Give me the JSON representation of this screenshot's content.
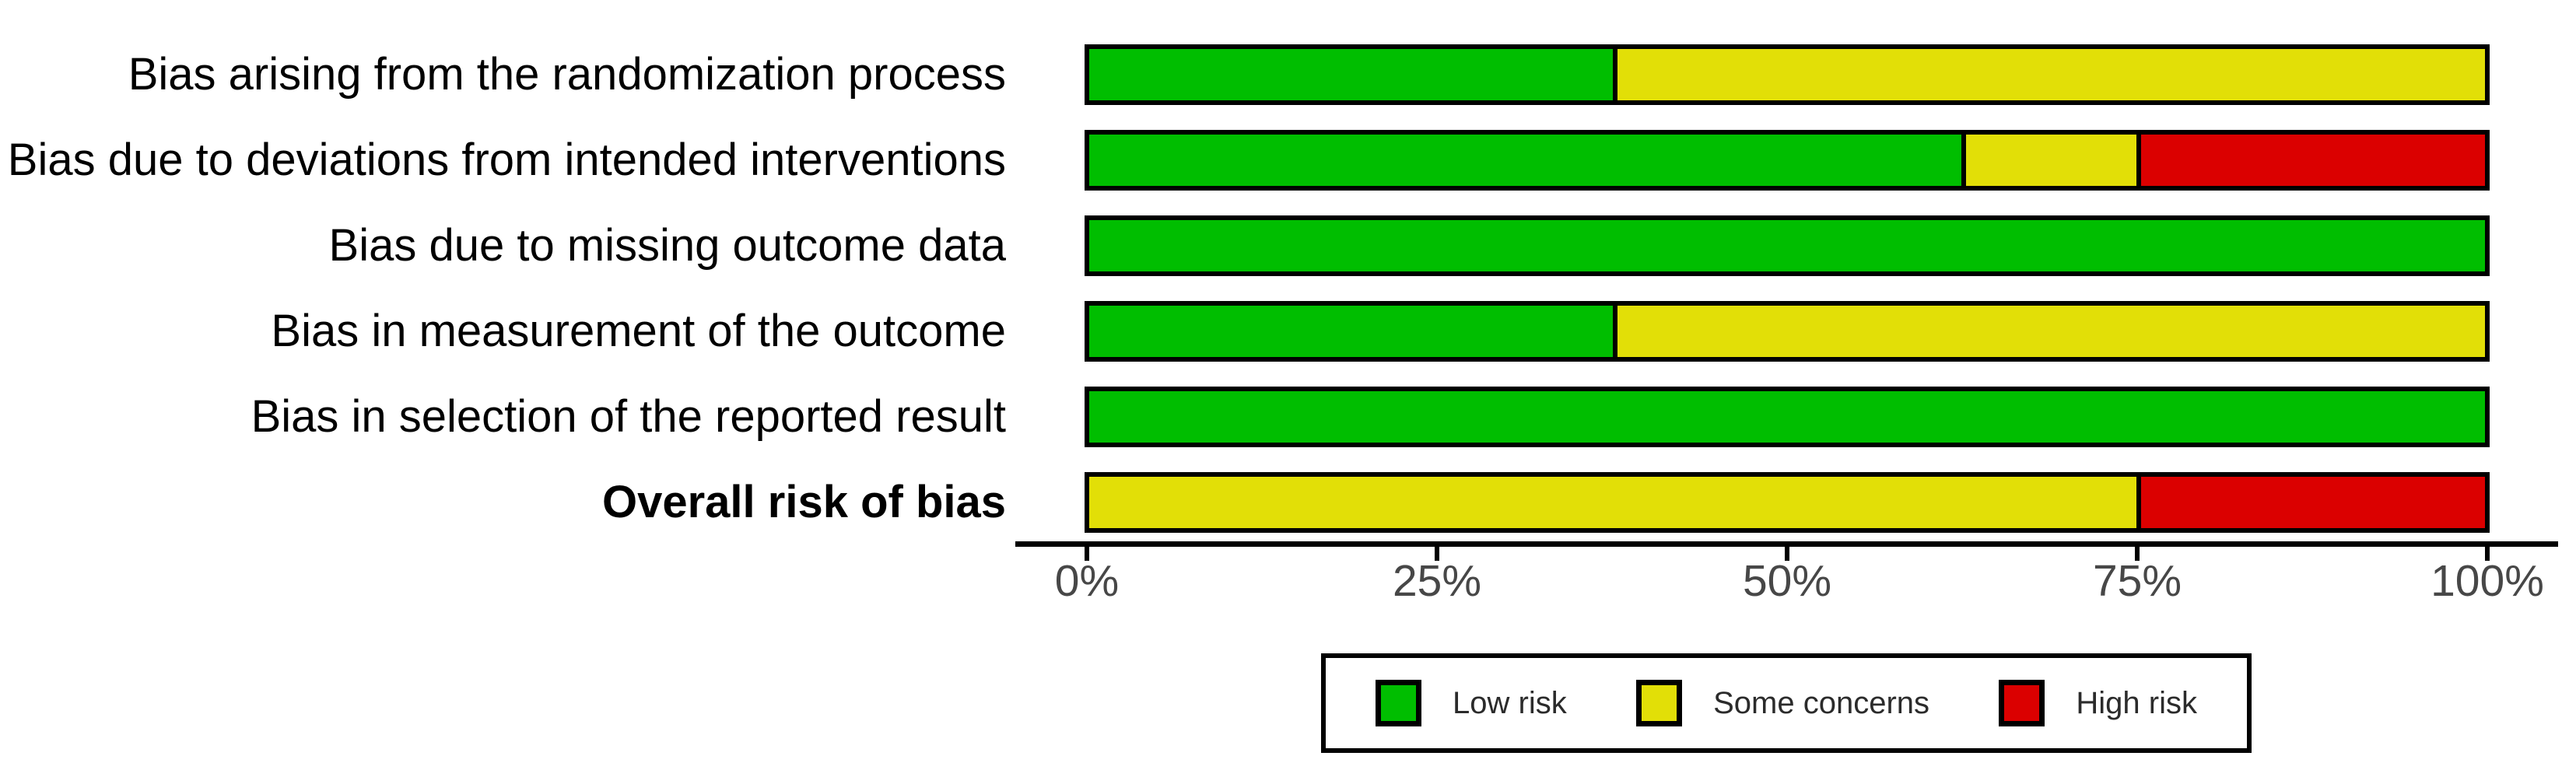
{
  "chart_data": {
    "type": "bar",
    "orientation": "horizontal-stacked",
    "title": "",
    "xlabel": "",
    "ylabel": "",
    "xlim": [
      0,
      100
    ],
    "x_ticks": [
      "0%",
      "25%",
      "50%",
      "75%",
      "100%"
    ],
    "x_tick_values": [
      0,
      25,
      50,
      75,
      100
    ],
    "grid": false,
    "legend_position": "bottom-center",
    "categories": [
      {
        "label": "Bias arising from the randomization process",
        "bold": false
      },
      {
        "label": "Bias due to deviations from intended interventions",
        "bold": false
      },
      {
        "label": "Bias due to missing outcome data",
        "bold": false
      },
      {
        "label": "Bias in measurement of the outcome",
        "bold": false
      },
      {
        "label": "Bias in selection of the reported result",
        "bold": false
      },
      {
        "label": "Overall risk of bias",
        "bold": true
      }
    ],
    "series": [
      {
        "name": "Low risk",
        "key": "low-risk",
        "color": "#00BE00",
        "values": [
          37.5,
          62.5,
          100,
          37.5,
          100,
          0
        ]
      },
      {
        "name": "Some concerns",
        "key": "some-concerns",
        "color": "#E2DF07",
        "values": [
          62.5,
          12.5,
          0,
          62.5,
          0,
          75
        ]
      },
      {
        "name": "High risk",
        "key": "high-risk",
        "color": "#DB0000",
        "values": [
          0,
          25,
          0,
          0,
          0,
          25
        ]
      }
    ],
    "colors": {
      "low_risk": "#00BE00",
      "some_concerns": "#E2DF07",
      "high_risk": "#DB0000",
      "axis_text": "#474747",
      "bar_border": "#000000"
    }
  }
}
